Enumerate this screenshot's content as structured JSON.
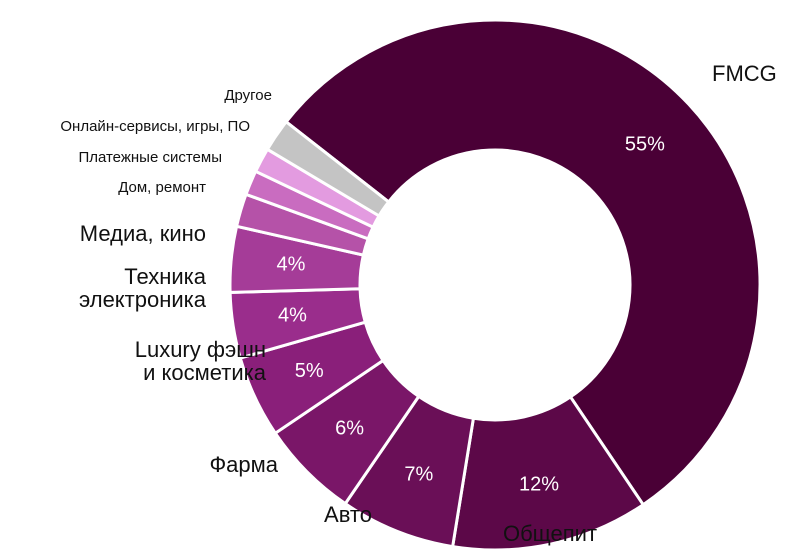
{
  "chart_data": {
    "type": "pie",
    "donut": true,
    "categories": [
      "FMCG",
      "Общепит",
      "Авто",
      "Фарма",
      "Luxury фэшн\nи косметика",
      "Техника\nэлектроника",
      "Медиа, кино",
      "Дом, ремонт",
      "Платежные системы",
      "Онлайн-сервисы, игры, ПО",
      "Другое"
    ],
    "values": [
      55,
      12,
      7,
      6,
      5,
      4,
      4,
      2,
      1.5,
      1.5,
      2
    ],
    "value_labels": [
      "55%",
      "12%",
      "7%",
      "6%",
      "5%",
      "4%",
      "4%",
      null,
      null,
      null,
      null
    ],
    "colors": [
      "#4a0036",
      "#5c0848",
      "#6a0f57",
      "#7a1668",
      "#8a1f7a",
      "#9a2d8c",
      "#a53c98",
      "#b552a8",
      "#c96cc0",
      "#e39be0",
      "#c4c4c4"
    ]
  }
}
